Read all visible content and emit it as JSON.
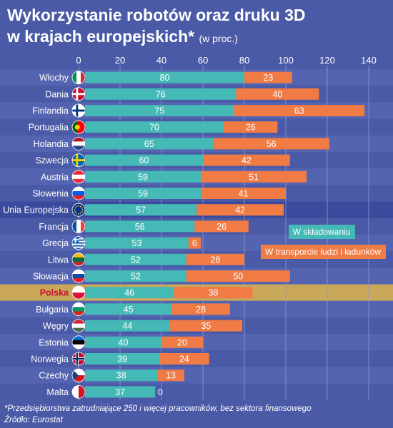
{
  "title_main": "Wykorzystanie robotów oraz druku 3D",
  "title_line2": "w krajach europejskich*",
  "title_unit": "(w proc.)",
  "footnote": "*Przedsiębiorstwa zatrudniające 250 i więcej pracowników, bez sektora finansowego",
  "source": "Źródło: Eurostat",
  "colors": {
    "background": "#4a5aa6",
    "stripe": "#5564b0",
    "storage": "#45b9b6",
    "transport": "#f07b45",
    "highlight": "#c9a85a",
    "eu_row": "#3b4a9c"
  },
  "chart_data": {
    "type": "bar",
    "orientation": "horizontal",
    "stacked": true,
    "xlim": [
      0,
      140
    ],
    "xticks": [
      "0",
      "20",
      "40",
      "60",
      "80",
      "100",
      "120",
      "140"
    ],
    "categories": [
      "Włochy",
      "Dania",
      "Finlandia",
      "Portugalia",
      "Holandia",
      "Szwecja",
      "Austria",
      "Słowenia",
      "Unia Europejska",
      "Francja",
      "Grecja",
      "Litwa",
      "Słowacja",
      "Polska",
      "Bułgaria",
      "Węgry",
      "Estonia",
      "Norwegia",
      "Czechy",
      "Malta"
    ],
    "series": [
      {
        "name": "W składowaniu",
        "values": [
          80,
          76,
          75,
          70,
          65,
          60,
          59,
          59,
          57,
          56,
          53,
          52,
          52,
          46,
          45,
          44,
          40,
          39,
          38,
          37
        ]
      },
      {
        "name": "W transporcie ludzi i ładunków",
        "values": [
          23,
          40,
          63,
          26,
          56,
          42,
          51,
          41,
          42,
          26,
          6,
          28,
          50,
          38,
          28,
          35,
          20,
          24,
          13,
          0
        ]
      }
    ],
    "highlight": "Polska",
    "legend": "right",
    "grid": true
  },
  "flags": [
    "italy-flag",
    "denmark-flag",
    "finland-flag",
    "portugal-flag",
    "netherlands-flag",
    "sweden-flag",
    "austria-flag",
    "slovenia-flag",
    "eu-flag",
    "france-flag",
    "greece-flag",
    "lithuania-flag",
    "slovakia-flag",
    "poland-flag",
    "bulgaria-flag",
    "hungary-flag",
    "estonia-flag",
    "norway-flag",
    "czech-flag",
    "malta-flag"
  ]
}
